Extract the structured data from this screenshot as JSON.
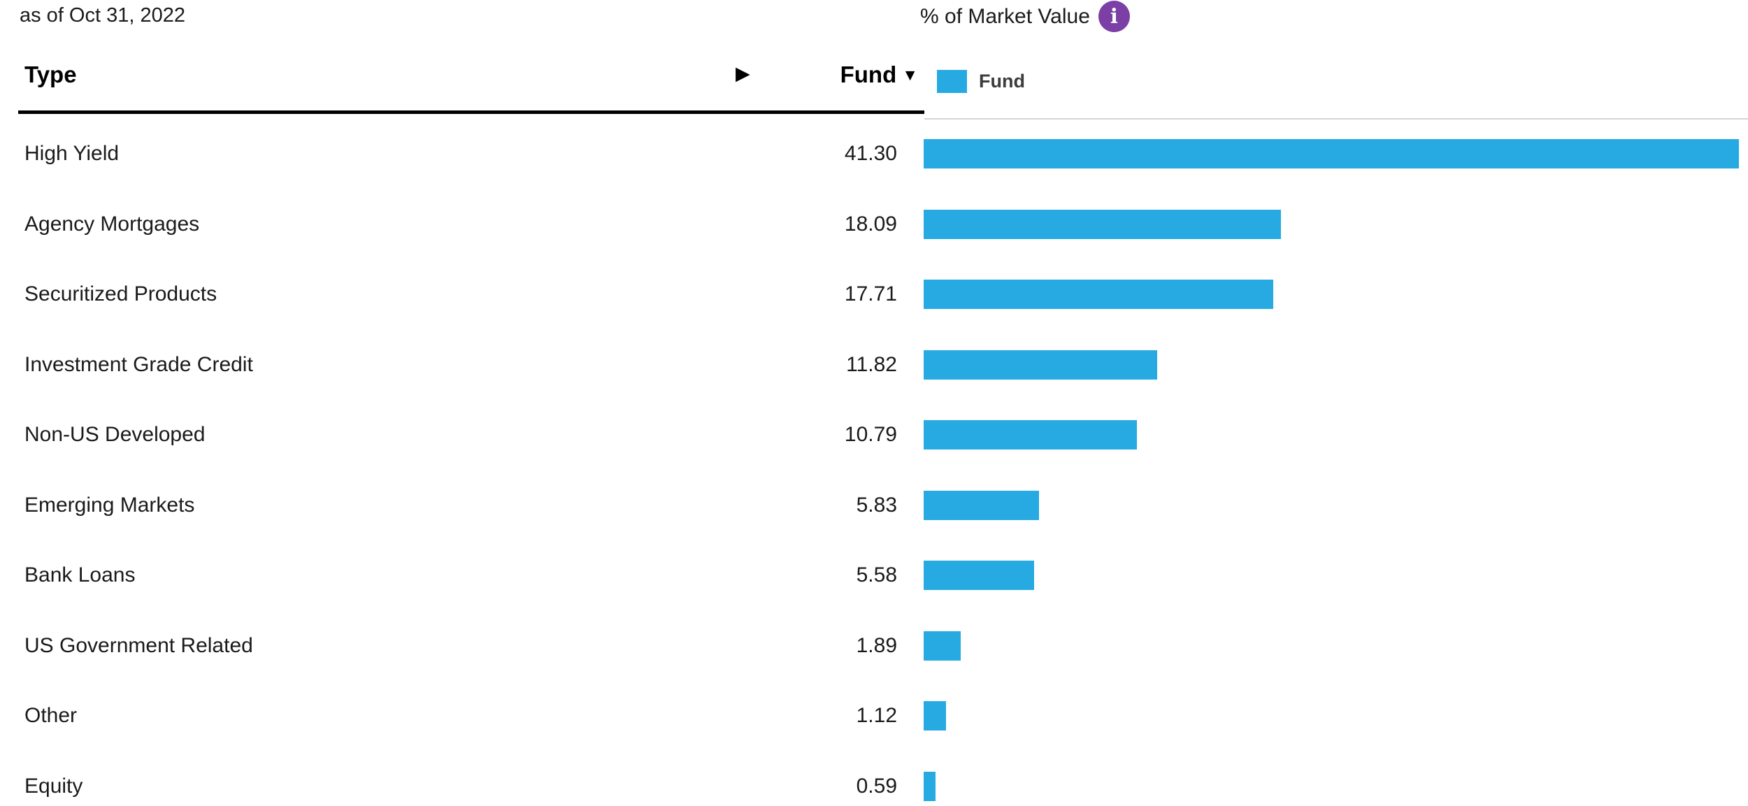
{
  "meta": {
    "as_of_label": "as of Oct 31, 2022"
  },
  "chart_header": {
    "title": "% of Market Value",
    "info_icon": "info-icon"
  },
  "table_header": {
    "type_label": "Type",
    "expand_arrow": "▶",
    "fund_label": "Fund",
    "sort_indicator": "▼"
  },
  "legend": {
    "label": "Fund",
    "swatch_icon": "legend-swatch"
  },
  "colors": {
    "bar": "#27AAE1",
    "info_icon_bg": "#7B3FA5",
    "text": "#1A1A1A",
    "separator": "#D4D4D4",
    "header_rule": "#000000"
  },
  "rows": [
    {
      "label": "High Yield",
      "value": "41.30"
    },
    {
      "label": "Agency Mortgages",
      "value": "18.09"
    },
    {
      "label": "Securitized Products",
      "value": "17.71"
    },
    {
      "label": "Investment Grade Credit",
      "value": "11.82"
    },
    {
      "label": "Non-US Developed",
      "value": "10.79"
    },
    {
      "label": "Emerging Markets",
      "value": "5.83"
    },
    {
      "label": "Bank Loans",
      "value": "5.58"
    },
    {
      "label": "US Government Related",
      "value": "1.89"
    },
    {
      "label": "Other",
      "value": "1.12"
    },
    {
      "label": "Equity",
      "value": "0.59"
    }
  ],
  "chart_data": {
    "type": "bar",
    "orientation": "horizontal",
    "title": "% of Market Value",
    "as_of": "Oct 31, 2022",
    "categories": [
      "High Yield",
      "Agency Mortgages",
      "Securitized Products",
      "Investment Grade Credit",
      "Non-US Developed",
      "Emerging Markets",
      "Bank Loans",
      "US Government Related",
      "Other",
      "Equity"
    ],
    "series": [
      {
        "name": "Fund",
        "color": "#27AAE1",
        "values": [
          41.3,
          18.09,
          17.71,
          11.82,
          10.79,
          5.83,
          5.58,
          1.89,
          1.12,
          0.59
        ]
      }
    ],
    "xlim": [
      0,
      41.3
    ],
    "value_unit": "percent of market value",
    "sort": "descending by Fund",
    "legend_position": "top",
    "grid": false
  }
}
